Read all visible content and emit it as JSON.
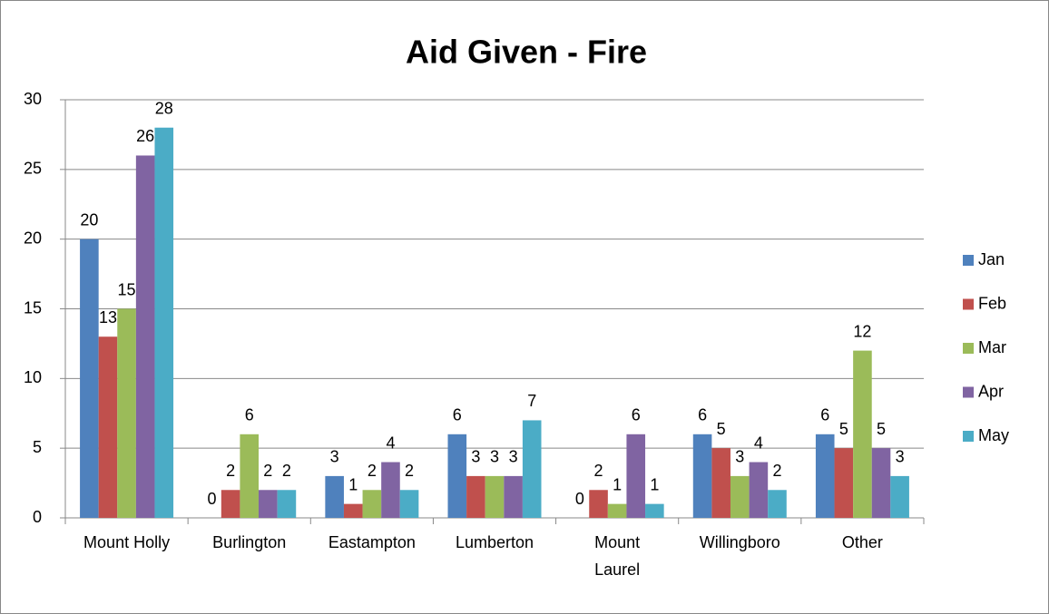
{
  "chart_data": {
    "type": "bar",
    "title": "Aid Given - Fire",
    "categories": [
      "Mount Holly",
      "Burlington",
      "Eastampton",
      "Lumberton",
      "Mount Laurel",
      "Willingboro",
      "Other"
    ],
    "series": [
      {
        "name": "Jan",
        "color": "#4f81bd",
        "values": [
          20,
          0,
          3,
          6,
          0,
          6,
          6
        ]
      },
      {
        "name": "Feb",
        "color": "#c0504d",
        "values": [
          13,
          2,
          1,
          3,
          2,
          5,
          5
        ]
      },
      {
        "name": "Mar",
        "color": "#9bbb59",
        "values": [
          15,
          6,
          2,
          3,
          1,
          3,
          12
        ]
      },
      {
        "name": "Apr",
        "color": "#8064a2",
        "values": [
          26,
          2,
          4,
          3,
          6,
          4,
          5
        ]
      },
      {
        "name": "May",
        "color": "#4bacc6",
        "values": [
          28,
          2,
          2,
          7,
          1,
          2,
          3
        ]
      }
    ],
    "ylim": [
      0,
      30
    ],
    "yticks": [
      0,
      5,
      10,
      15,
      20,
      25,
      30
    ],
    "grid": true,
    "legend": "right"
  }
}
